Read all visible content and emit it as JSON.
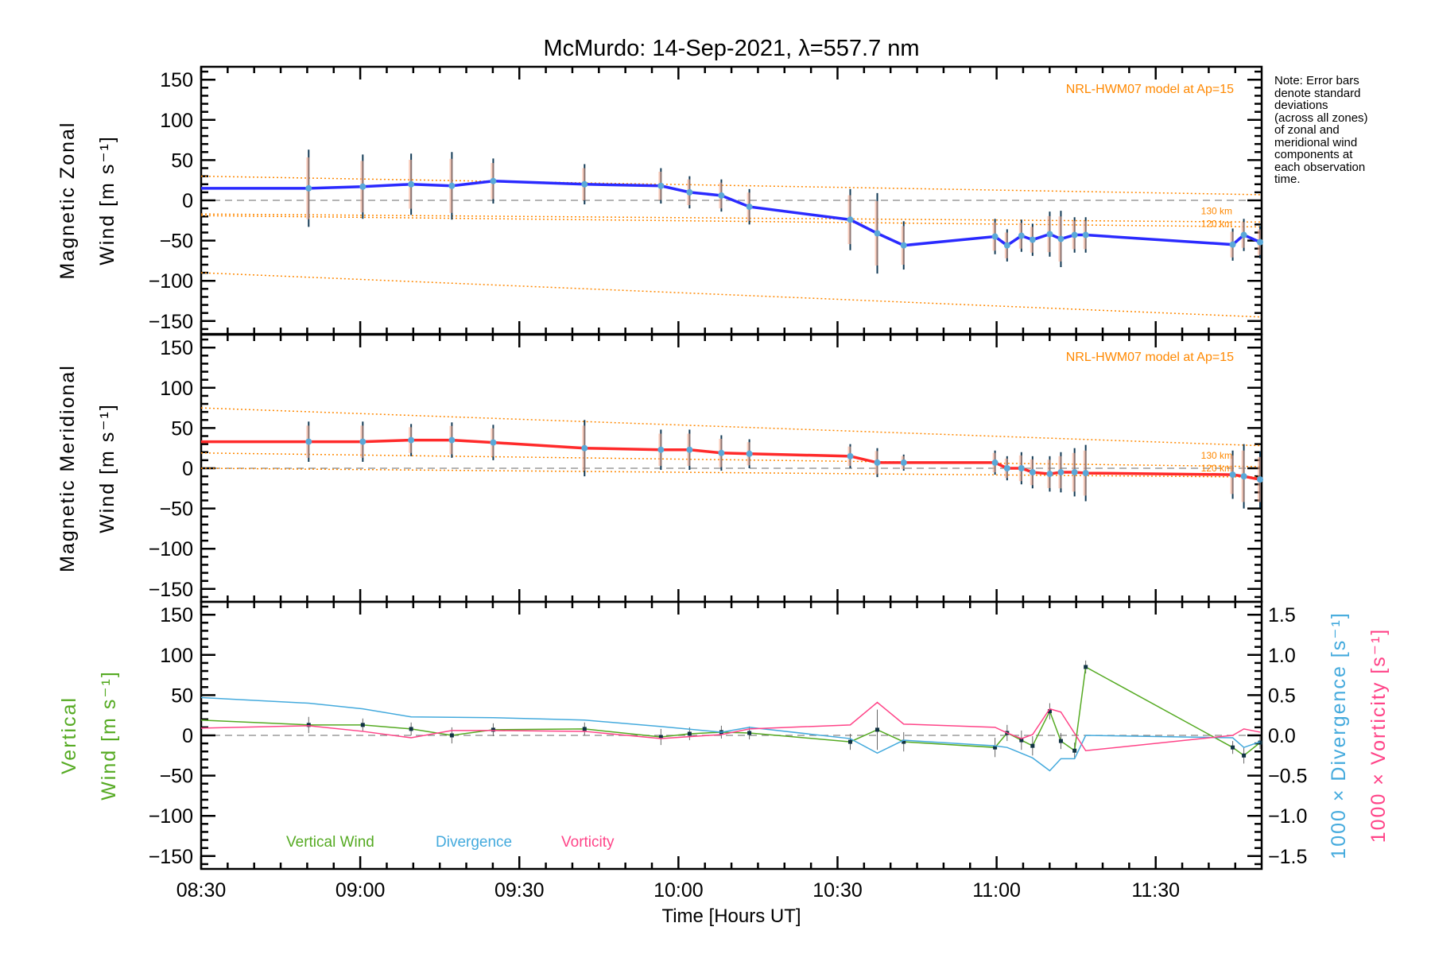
{
  "chart_data": [
    {
      "type": "line",
      "title": "McMurdo: 14-Sep-2021, λ=557.7 nm",
      "panel": "zonal",
      "ylabel": [
        "Magnetic Zonal",
        "Wind [m s⁻¹]"
      ],
      "xlabel": "Time [Hours UT]",
      "xlim": [
        8.5,
        11.833
      ],
      "ylim": [
        -166,
        166
      ],
      "yticks": [
        150,
        100,
        50,
        0,
        -50,
        -100,
        -150
      ],
      "xtick_labels": [
        "08:30",
        "09:00",
        "09:30",
        "10:00",
        "10:30",
        "11:00",
        "11:30"
      ],
      "xtick_values": [
        8.5,
        9.0,
        9.5,
        10.0,
        10.5,
        11.0,
        11.5
      ],
      "model_label": "NRL-HWM07 model at Ap=15",
      "model_alt_labels": [
        "130 km",
        "120 km"
      ],
      "model_lines": [
        {
          "name": "model-upper",
          "x": [
            8.5,
            11.833
          ],
          "y": [
            30,
            7
          ]
        },
        {
          "name": "130 km",
          "x": [
            8.5,
            11.833
          ],
          "y": [
            -17,
            -27
          ]
        },
        {
          "name": "120 km",
          "x": [
            8.5,
            11.833
          ],
          "y": [
            -19,
            -33
          ]
        },
        {
          "name": "model-lower",
          "x": [
            8.5,
            11.833
          ],
          "y": [
            -90,
            -145
          ]
        }
      ],
      "series": [
        {
          "name": "Magnetic Zonal Wind",
          "color": "#2a2aff",
          "x": [
            8.5,
            8.838,
            9.008,
            9.16,
            9.288,
            9.418,
            9.705,
            9.945,
            10.035,
            10.135,
            10.223,
            10.54,
            10.625,
            10.708,
            10.995,
            11.033,
            11.078,
            11.113,
            11.167,
            11.202,
            11.245,
            11.28,
            11.742,
            11.777,
            11.828
          ],
          "y": [
            15,
            15,
            17,
            20,
            18,
            24,
            20,
            18,
            10,
            6,
            -8,
            -24,
            -41,
            -56,
            -45,
            -56,
            -44,
            -49,
            -42,
            -48,
            -43,
            -43,
            -55,
            -43,
            -52
          ],
          "err": [
            0,
            48,
            40,
            38,
            42,
            28,
            25,
            22,
            20,
            20,
            22,
            38,
            50,
            30,
            22,
            20,
            20,
            20,
            28,
            35,
            22,
            22,
            20,
            20,
            20
          ]
        }
      ]
    },
    {
      "type": "line",
      "panel": "meridional",
      "ylabel": [
        "Magnetic Meridional",
        "Wind [m s⁻¹]"
      ],
      "ylim": [
        -166,
        166
      ],
      "yticks": [
        150,
        100,
        50,
        0,
        -50,
        -100,
        -150
      ],
      "model_label": "NRL-HWM07 model at Ap=15",
      "model_alt_labels": [
        "130 km",
        "120 km"
      ],
      "model_lines": [
        {
          "name": "model-upper",
          "x": [
            8.5,
            11.833
          ],
          "y": [
            75,
            28
          ]
        },
        {
          "name": "130 km",
          "x": [
            8.5,
            11.833
          ],
          "y": [
            19,
            2
          ]
        },
        {
          "name": "120 km",
          "x": [
            8.5,
            11.833
          ],
          "y": [
            0,
            -11
          ]
        }
      ],
      "series": [
        {
          "name": "Magnetic Meridional Wind",
          "color": "#ff2a2a",
          "x": [
            8.5,
            8.838,
            9.008,
            9.16,
            9.288,
            9.418,
            9.705,
            9.945,
            10.035,
            10.135,
            10.223,
            10.54,
            10.625,
            10.708,
            10.995,
            11.033,
            11.078,
            11.113,
            11.167,
            11.202,
            11.245,
            11.28,
            11.742,
            11.777,
            11.828
          ],
          "y": [
            33,
            33,
            33,
            35,
            35,
            32,
            25,
            23,
            23,
            19,
            18,
            15,
            7,
            7,
            7,
            0,
            0,
            -5,
            -7,
            -5,
            -5,
            -6,
            -8,
            -10,
            -14
          ],
          "err": [
            0,
            25,
            25,
            20,
            22,
            22,
            35,
            25,
            25,
            22,
            18,
            15,
            18,
            10,
            15,
            15,
            20,
            20,
            22,
            25,
            30,
            35,
            30,
            40,
            35
          ]
        }
      ]
    },
    {
      "type": "line",
      "panel": "vertical",
      "ylabel": [
        "Vertical",
        "Wind [m s⁻¹]"
      ],
      "ylim": [
        -166,
        166
      ],
      "yticks": [
        150,
        100,
        50,
        0,
        -50,
        -100,
        -150
      ],
      "y2lim": [
        -1.66,
        1.66
      ],
      "y2ticks": [
        "1.5",
        "1.0",
        "0.5",
        "0.0",
        "−0.5",
        "−1.0",
        "−1.5"
      ],
      "y2tick_values": [
        1.5,
        1.0,
        0.5,
        0.0,
        -0.5,
        -1.0,
        -1.5
      ],
      "y2label_div": "1000 × Divergence [s⁻¹]",
      "y2label_vort": "1000 × Vorticity [s⁻¹]",
      "legend": [
        "Vertical Wind",
        "Divergence",
        "Vorticity"
      ],
      "series": [
        {
          "name": "Vertical Wind",
          "axis": "left",
          "color": "#55aa22",
          "x": [
            8.5,
            8.838,
            9.008,
            9.16,
            9.288,
            9.418,
            9.705,
            9.945,
            10.035,
            10.135,
            10.223,
            10.54,
            10.625,
            10.708,
            10.995,
            11.033,
            11.078,
            11.113,
            11.167,
            11.202,
            11.245,
            11.28,
            11.742,
            11.777,
            11.828
          ],
          "y": [
            19,
            13,
            13,
            8,
            0,
            7,
            8,
            -2,
            2,
            4,
            3,
            -8,
            7,
            -8,
            -15,
            3,
            -6,
            -13,
            30,
            -7,
            -19,
            85,
            -15,
            -25,
            -9
          ],
          "err": [
            0,
            10,
            8,
            8,
            10,
            8,
            8,
            10,
            8,
            8,
            8,
            10,
            25,
            12,
            12,
            10,
            12,
            12,
            10,
            10,
            10,
            8,
            8,
            10,
            8
          ]
        },
        {
          "name": "Divergence",
          "axis": "right",
          "color": "#44aadd",
          "x": [
            8.5,
            8.838,
            9.008,
            9.16,
            9.418,
            9.705,
            9.945,
            10.135,
            10.223,
            10.54,
            10.625,
            10.708,
            10.995,
            11.033,
            11.113,
            11.167,
            11.202,
            11.245,
            11.28,
            11.742,
            11.777,
            11.828
          ],
          "y": [
            0.47,
            0.4,
            0.33,
            0.23,
            0.22,
            0.19,
            0.11,
            0.04,
            0.1,
            -0.04,
            -0.22,
            -0.06,
            -0.13,
            -0.15,
            -0.28,
            -0.44,
            -0.29,
            -0.29,
            0.0,
            -0.03,
            -0.15,
            -0.08
          ]
        },
        {
          "name": "Vorticity",
          "axis": "right",
          "color": "#ff4488",
          "x": [
            8.5,
            8.838,
            9.008,
            9.16,
            9.288,
            9.418,
            9.705,
            9.945,
            10.135,
            10.223,
            10.54,
            10.625,
            10.708,
            10.995,
            11.033,
            11.078,
            11.113,
            11.167,
            11.202,
            11.28,
            11.742,
            11.777,
            11.828
          ],
          "y": [
            0.09,
            0.12,
            0.05,
            -0.03,
            0.06,
            0.06,
            0.05,
            -0.04,
            0.01,
            0.08,
            0.13,
            0.41,
            0.14,
            0.1,
            0.03,
            -0.04,
            0.01,
            0.33,
            0.29,
            -0.19,
            0.0,
            0.08,
            0.04
          ]
        }
      ]
    }
  ],
  "note": [
    "Note: Error bars",
    "denote standard",
    "deviations",
    "(across all zones)",
    "of zonal and",
    "meridional wind",
    "components at",
    "each observation",
    "time."
  ]
}
